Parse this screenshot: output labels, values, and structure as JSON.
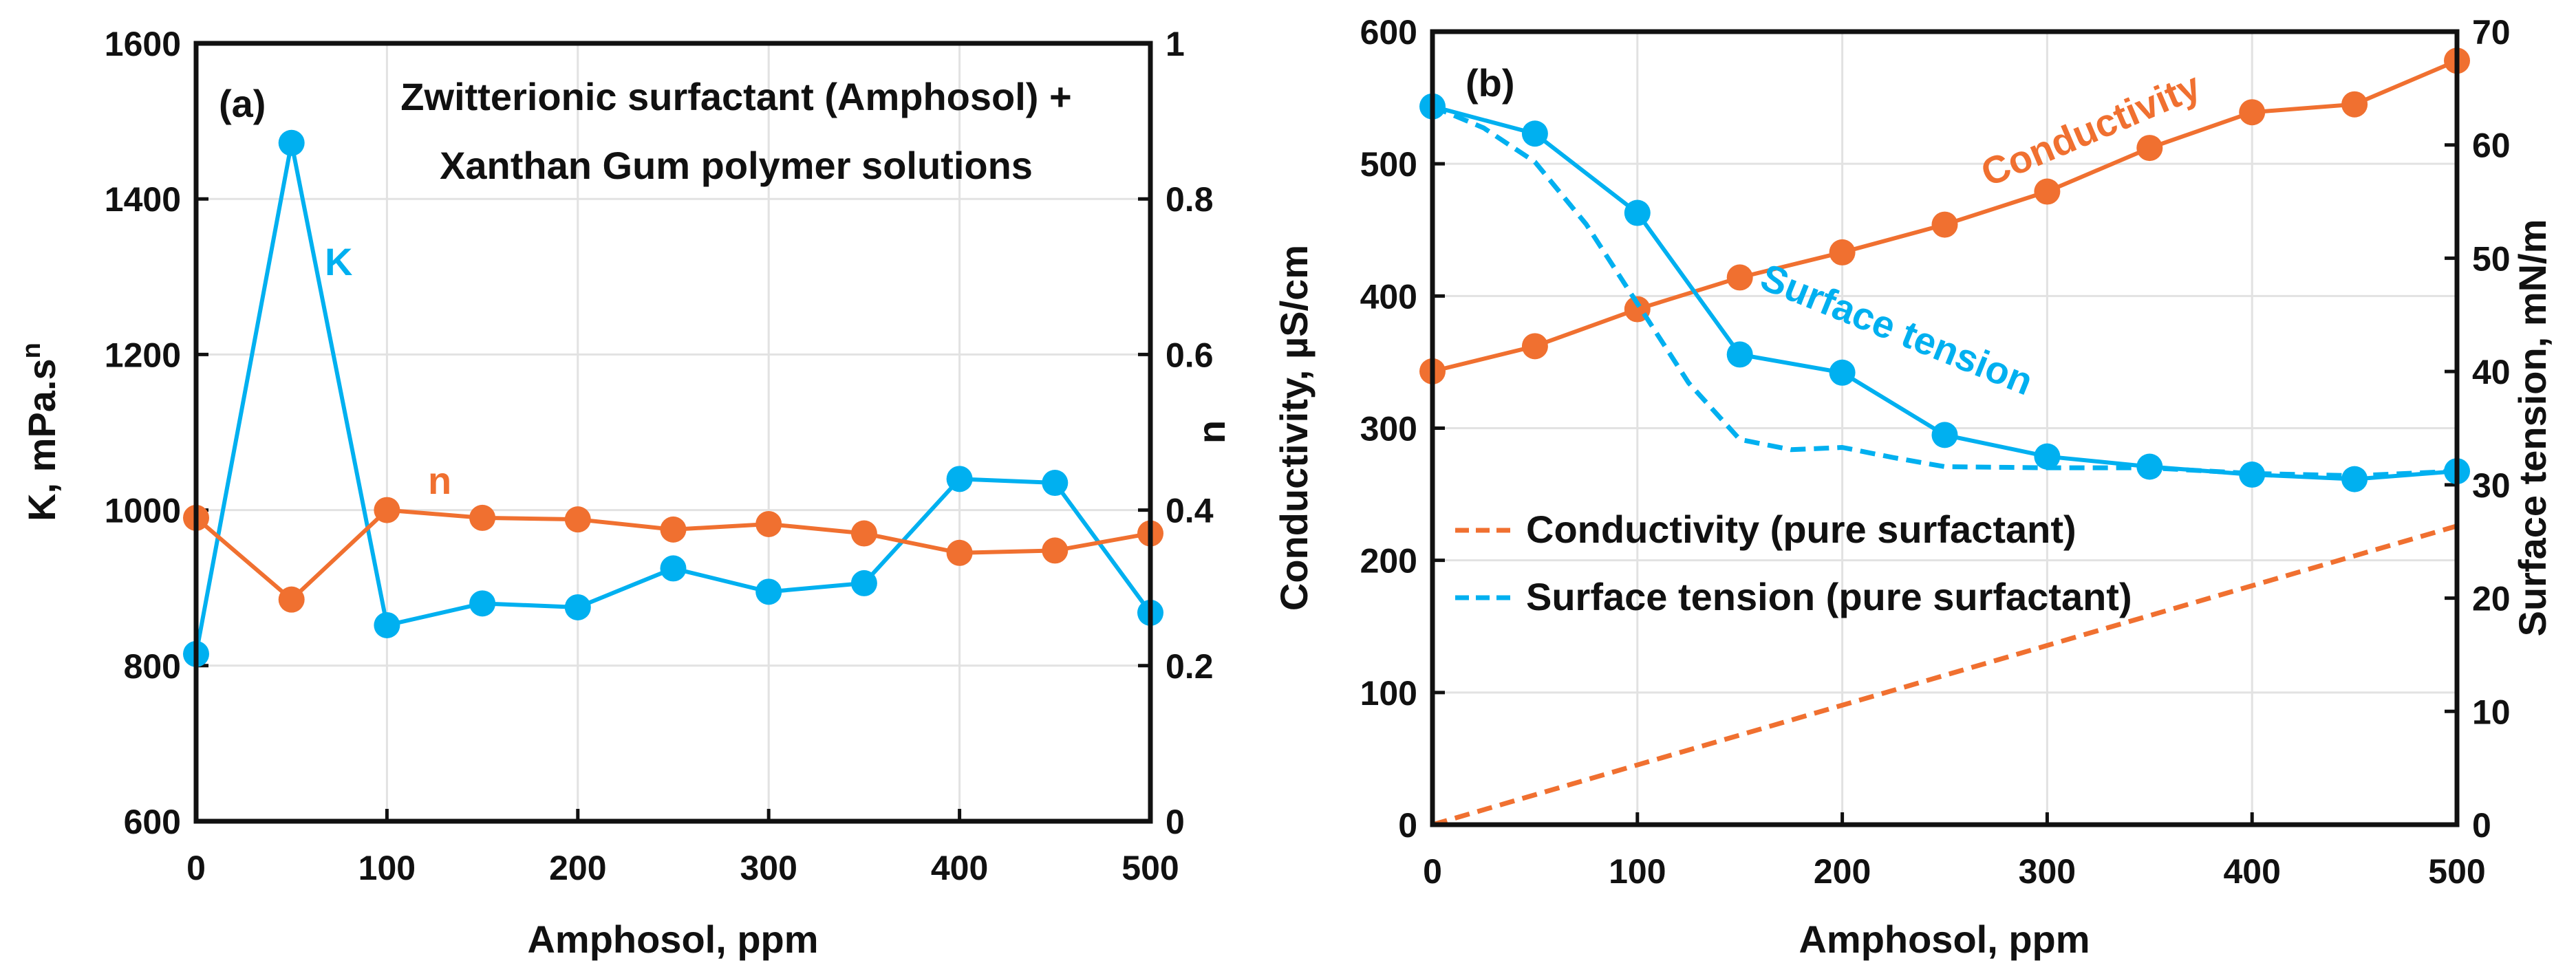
{
  "colors": {
    "blue": "#00b0f0",
    "orange": "#f07030"
  },
  "chart_data": [
    {
      "type": "line",
      "panel_label": "(a)",
      "title": "Zwitterionic surfactant (Amphosol) +",
      "title_line2": "Xanthan Gum polymer solutions",
      "xlabel": "Amphosol, ppm",
      "ylabel": "K, mPa.s",
      "ylabel_sup": "n",
      "y2label": "n",
      "xlim": [
        0,
        500
      ],
      "ylim": [
        600,
        1600
      ],
      "y2lim": [
        0,
        1
      ],
      "xticks": [
        "0",
        "100",
        "200",
        "300",
        "400",
        "500"
      ],
      "yticks": [
        "600",
        "800",
        "1000",
        "1200",
        "1400",
        "1600"
      ],
      "y2ticks": [
        "0",
        "0.2",
        "0.4",
        "0.6",
        "0.8",
        "1"
      ],
      "grid": true,
      "x": [
        0,
        50,
        100,
        150,
        200,
        250,
        300,
        350,
        400,
        450,
        500
      ],
      "series": [
        {
          "name": "K",
          "axis": "left",
          "color": "#00b0f0",
          "style": "solid-marker",
          "values": [
            815,
            1472,
            852,
            880,
            875,
            925,
            895,
            906,
            1040,
            1035,
            868
          ]
        },
        {
          "name": "n",
          "axis": "right",
          "color": "#f07030",
          "style": "solid-marker",
          "values": [
            0.39,
            0.285,
            0.4,
            0.39,
            0.388,
            0.375,
            0.382,
            0.37,
            0.345,
            0.348,
            0.37
          ]
        }
      ]
    },
    {
      "type": "line",
      "panel_label": "(b)",
      "xlabel": "Amphosol, ppm",
      "ylabel": "Conductivity, µS/cm",
      "y2label": "Surface tension, mN/m",
      "xlim": [
        0,
        500
      ],
      "ylim": [
        0,
        600
      ],
      "y2lim": [
        0,
        70
      ],
      "xticks": [
        "0",
        "100",
        "200",
        "300",
        "400",
        "500"
      ],
      "yticks": [
        "0",
        "100",
        "200",
        "300",
        "400",
        "500",
        "600"
      ],
      "y2ticks": [
        "0",
        "10",
        "20",
        "30",
        "40",
        "50",
        "60",
        "70"
      ],
      "grid": true,
      "legend": "center-left",
      "series": [
        {
          "name": "Conductivity",
          "axis": "left",
          "color": "#f07030",
          "style": "solid-marker",
          "x": [
            0,
            50,
            100,
            150,
            200,
            250,
            300,
            350,
            400,
            450,
            500
          ],
          "values": [
            343,
            362,
            390,
            414,
            433,
            454,
            479,
            512,
            539,
            545,
            578
          ]
        },
        {
          "name": "Surface tension",
          "axis": "right",
          "color": "#00b0f0",
          "style": "solid-marker",
          "x": [
            0,
            50,
            100,
            150,
            200,
            250,
            300,
            350,
            400,
            450,
            500
          ],
          "values": [
            63.4,
            61.0,
            54.0,
            41.5,
            39.9,
            34.4,
            32.5,
            31.6,
            30.9,
            30.5,
            31.2
          ]
        },
        {
          "name": "Conductivity (pure surfactant)",
          "axis": "left",
          "color": "#f07030",
          "style": "dashed",
          "x": [
            0,
            500
          ],
          "values": [
            0,
            226
          ]
        },
        {
          "name": "Surface tension (pure surfactant)",
          "axis": "right",
          "color": "#00b0f0",
          "style": "dashed",
          "x": [
            0,
            25,
            50,
            75,
            100,
            125,
            150,
            175,
            200,
            225,
            250,
            300,
            350,
            400,
            450,
            500
          ],
          "values": [
            63.4,
            61.5,
            58.5,
            53,
            46,
            39,
            34,
            33.1,
            33.3,
            32.4,
            31.6,
            31.5,
            31.5,
            31.0,
            30.8,
            31.2
          ]
        }
      ]
    }
  ]
}
